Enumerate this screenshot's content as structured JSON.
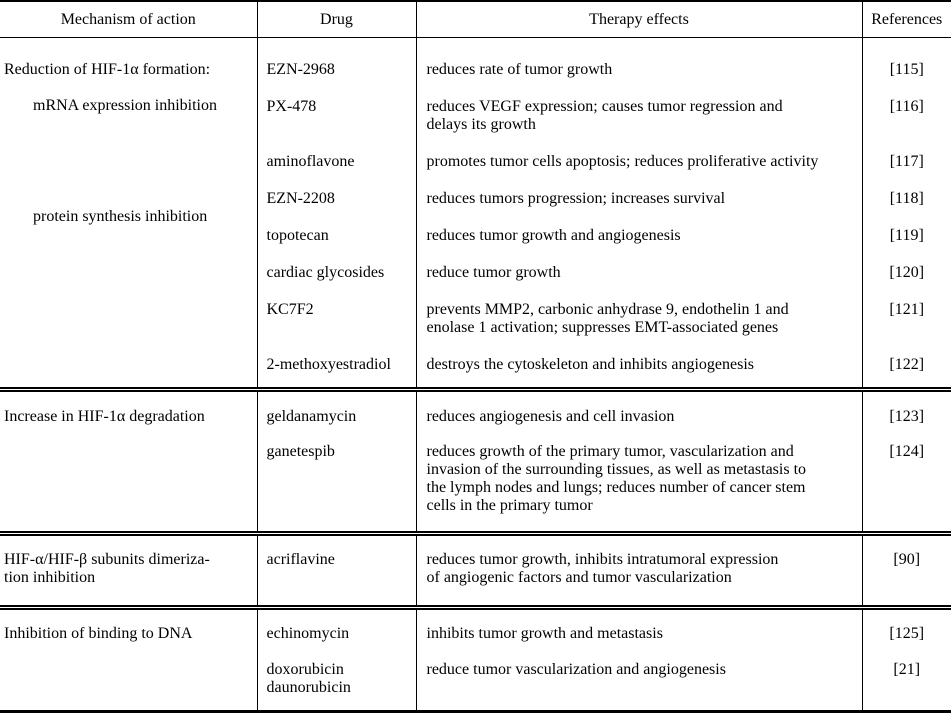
{
  "table": {
    "headers": {
      "mechanism": "Mechanism of action",
      "drug": "Drug",
      "effects": "Therapy effects",
      "references": "References"
    },
    "groups": [
      {
        "mechanism_heading": "Reduction of HIF-1α formation:",
        "mechanism_sub1": "mRNA expression inhibition",
        "mechanism_sub2": "protein synthesis inhibition",
        "rows": [
          {
            "drug": "EZN-2968",
            "effect": "reduces rate of tumor growth",
            "ref": "[115]"
          },
          {
            "drug": "PX-478",
            "effect": "reduces VEGF expression; causes tumor regression and\ndelays its growth",
            "ref": "[116]"
          },
          {
            "drug": "aminoflavone",
            "effect": "promotes tumor cells apoptosis; reduces proliferative activity",
            "ref": "[117]"
          },
          {
            "drug": "EZN-2208",
            "effect": "reduces tumors progression; increases survival",
            "ref": "[118]"
          },
          {
            "drug": "topotecan",
            "effect": "reduces tumor growth and angiogenesis",
            "ref": "[119]"
          },
          {
            "drug": "cardiac glycosides",
            "effect": "reduce tumor growth",
            "ref": "[120]"
          },
          {
            "drug": "KC7F2",
            "effect": "prevents MMP2, carbonic anhydrase 9, endothelin 1 and\nenolase 1 activation; suppresses EMT-associated genes",
            "ref": "[121]"
          },
          {
            "drug": "2-methoxyestradiol",
            "effect": "destroys the cytoskeleton and inhibits angiogenesis",
            "ref": "[122]"
          }
        ]
      },
      {
        "mechanism": "Increase in HIF-1α degradation",
        "rows": [
          {
            "drug": "geldanamycin",
            "effect": "reduces angiogenesis and cell invasion",
            "ref": "[123]"
          },
          {
            "drug": "ganetespib",
            "effect": "reduces growth of the primary tumor, vascularization and\ninvasion of the surrounding tissues, as well as metastasis to\nthe lymph nodes and lungs; reduces number of cancer stem\ncells in the primary tumor",
            "ref": "[124]"
          }
        ]
      },
      {
        "mechanism": "HIF-α/HIF-β subunits dimeriza-\ntion inhibition",
        "rows": [
          {
            "drug": "acriflavine",
            "effect": "reduces tumor growth, inhibits intratumoral expression\nof angiogenic factors and tumor vascularization",
            "ref": "[90]"
          }
        ]
      },
      {
        "mechanism": "Inhibition of binding to DNA",
        "rows": [
          {
            "drug": "echinomycin",
            "effect": "inhibits tumor growth and metastasis",
            "ref": "[125]"
          },
          {
            "drug": "doxorubicin\ndaunorubicin",
            "effect": "reduce tumor vascularization and angiogenesis",
            "ref": "[21]"
          }
        ]
      }
    ]
  }
}
